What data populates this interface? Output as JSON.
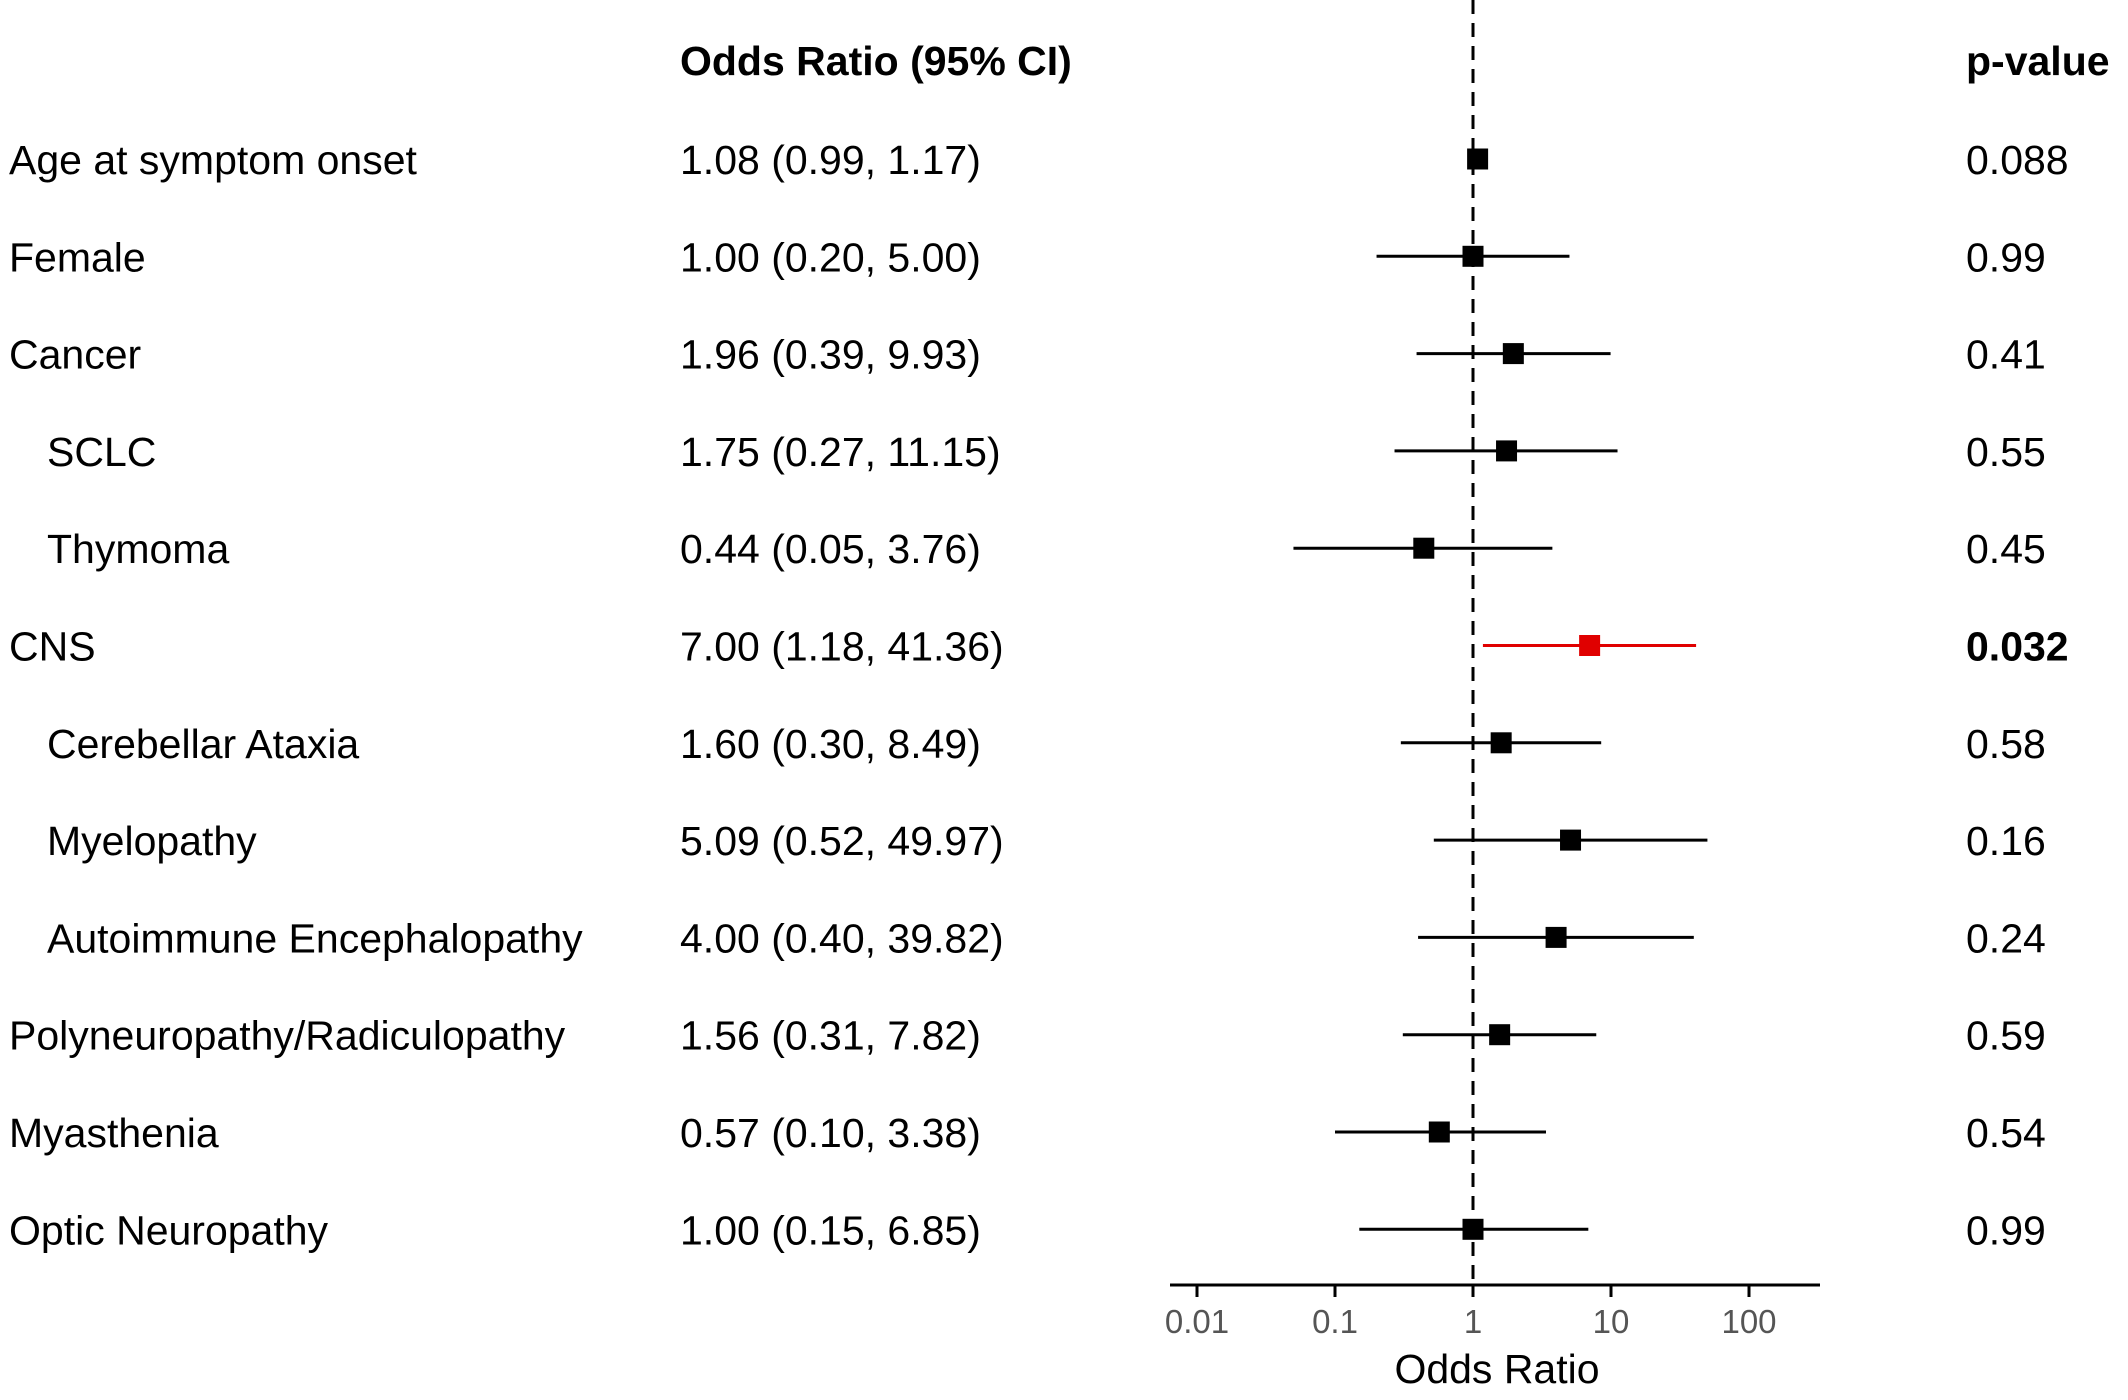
{
  "header": {
    "or_column": "Odds Ratio (95% CI)",
    "p_column": "p-value"
  },
  "colors": {
    "default": "#000000",
    "significant": "#e00000"
  },
  "chart_data": {
    "type": "forest",
    "x_scale": "log10",
    "xlabel": "Odds Ratio",
    "xlim": [
      0.01,
      500
    ],
    "x_ticks": [
      0.01,
      0.1,
      1,
      10,
      100
    ],
    "x_tick_labels": [
      "0.01",
      "0.1",
      "1",
      "10",
      "100"
    ],
    "reference_line": 1,
    "rows": [
      {
        "label": "Age at symptom onset",
        "indent": false,
        "or": 1.08,
        "lo": 0.99,
        "hi": 1.17,
        "or_text": "1.08 (0.99, 1.17)",
        "p": "0.088",
        "significant": false
      },
      {
        "label": "Female",
        "indent": false,
        "or": 1.0,
        "lo": 0.2,
        "hi": 5.0,
        "or_text": "1.00 (0.20, 5.00)",
        "p": "0.99",
        "significant": false
      },
      {
        "label": "Cancer",
        "indent": false,
        "or": 1.96,
        "lo": 0.39,
        "hi": 9.93,
        "or_text": "1.96 (0.39, 9.93)",
        "p": "0.41",
        "significant": false
      },
      {
        "label": "SCLC",
        "indent": true,
        "or": 1.75,
        "lo": 0.27,
        "hi": 11.15,
        "or_text": "1.75 (0.27, 11.15)",
        "p": "0.55",
        "significant": false
      },
      {
        "label": "Thymoma",
        "indent": true,
        "or": 0.44,
        "lo": 0.05,
        "hi": 3.76,
        "or_text": "0.44 (0.05, 3.76)",
        "p": "0.45",
        "significant": false
      },
      {
        "label": "CNS",
        "indent": false,
        "or": 7.0,
        "lo": 1.18,
        "hi": 41.36,
        "or_text": "7.00 (1.18, 41.36)",
        "p": "0.032",
        "significant": true
      },
      {
        "label": "Cerebellar Ataxia",
        "indent": true,
        "or": 1.6,
        "lo": 0.3,
        "hi": 8.49,
        "or_text": "1.60 (0.30, 8.49)",
        "p": "0.58",
        "significant": false
      },
      {
        "label": "Myelopathy",
        "indent": true,
        "or": 5.09,
        "lo": 0.52,
        "hi": 49.97,
        "or_text": "5.09 (0.52, 49.97)",
        "p": "0.16",
        "significant": false
      },
      {
        "label": "Autoimmune Encephalopathy",
        "indent": true,
        "or": 4.0,
        "lo": 0.4,
        "hi": 39.82,
        "or_text": "4.00 (0.40, 39.82)",
        "p": "0.24",
        "significant": false
      },
      {
        "label": "Polyneuropathy/Radiculopathy",
        "indent": false,
        "or": 1.56,
        "lo": 0.31,
        "hi": 7.82,
        "or_text": "1.56 (0.31, 7.82)",
        "p": "0.59",
        "significant": false
      },
      {
        "label": "Myasthenia",
        "indent": false,
        "or": 0.57,
        "lo": 0.1,
        "hi": 3.38,
        "or_text": "0.57 (0.10, 3.38)",
        "p": "0.54",
        "significant": false
      },
      {
        "label": "Optic Neuropathy",
        "indent": false,
        "or": 1.0,
        "lo": 0.15,
        "hi": 6.85,
        "or_text": "1.00 (0.15, 6.85)",
        "p": "0.99",
        "significant": false
      }
    ]
  }
}
